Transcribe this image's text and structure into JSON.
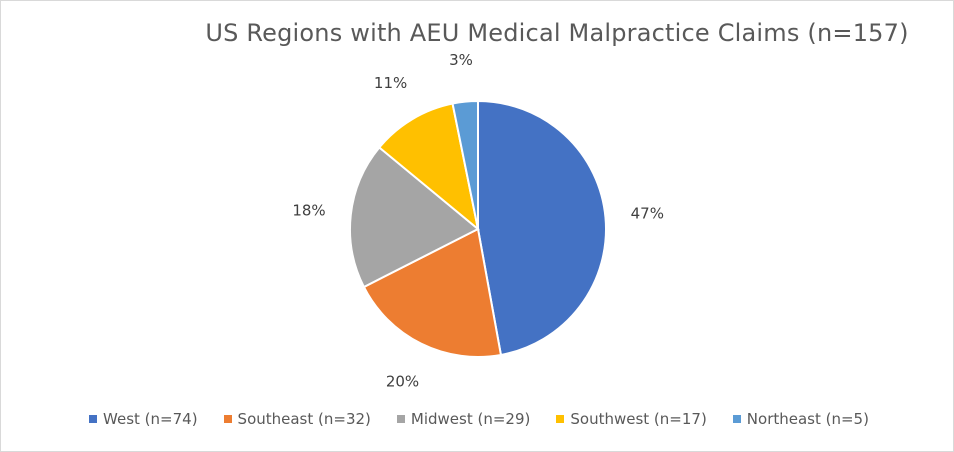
{
  "chart_data": {
    "type": "pie",
    "title": "US Regions with AEU Medical Malpractice Claims (n=157)",
    "categories": [
      "West (n=74)",
      "Southeast (n=32)",
      "Midwest (n=29)",
      "Southwest (n=17)",
      "Northeast (n=5)"
    ],
    "values": [
      74,
      32,
      29,
      17,
      5
    ],
    "data_labels": [
      "47%",
      "20%",
      "18%",
      "11%",
      "3%"
    ],
    "colors": [
      "#4472C4",
      "#ED7D31",
      "#A5A5A5",
      "#FFC000",
      "#5B9BD5"
    ],
    "legend_position": "bottom"
  }
}
